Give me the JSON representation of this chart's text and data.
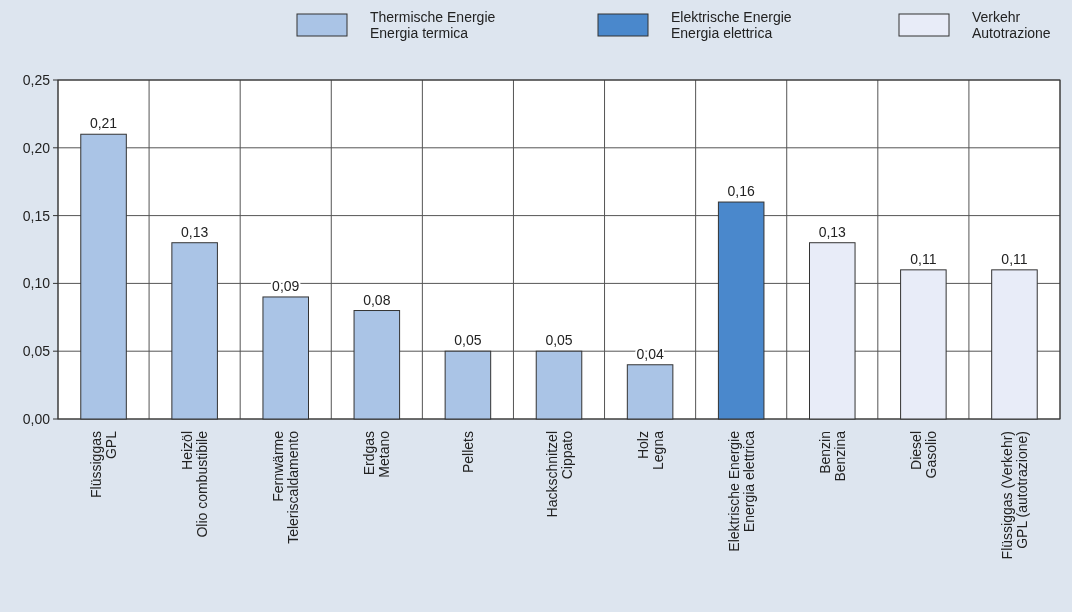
{
  "chart_data": {
    "type": "bar",
    "categories": [
      "Flüssiggas\nGPL",
      "Heizöl\nOlio combustibile",
      "Fernwärme\nTeleriscaldamento",
      "Erdgas\nMetano",
      "Pellets",
      "Hackschnitzel\nCippato",
      "Holz\nLegna",
      "Elektrische Energie\nEnergia elettrica",
      "Benzin\nBenzina",
      "Diesel\nGasolio",
      "Flüssiggas (Verkehr)\nGPL (autotrazione)"
    ],
    "series": [
      {
        "name": "Thermische Energie\nEnergia termica",
        "color": "#aac4e6",
        "values": [
          0.21,
          0.13,
          0.09,
          0.08,
          0.05,
          0.05,
          0.04,
          null,
          null,
          null,
          null
        ],
        "value_labels": [
          "0,21",
          "0,13",
          "0,09",
          "0,08",
          "0,05",
          "0,05",
          "0,04",
          null,
          null,
          null,
          null
        ]
      },
      {
        "name": "Elektrische Energie\nEnergia elettrica",
        "color": "#4a88cc",
        "values": [
          null,
          null,
          null,
          null,
          null,
          null,
          null,
          0.16,
          null,
          null,
          null
        ],
        "value_labels": [
          null,
          null,
          null,
          null,
          null,
          null,
          null,
          "0,16",
          null,
          null,
          null
        ]
      },
      {
        "name": "Verkehr\nAutotrazione",
        "color": "#e8ecf8",
        "values": [
          null,
          null,
          null,
          null,
          null,
          null,
          null,
          null,
          0.13,
          0.11,
          0.11
        ],
        "value_labels": [
          null,
          null,
          null,
          null,
          null,
          null,
          null,
          null,
          "0,13",
          "0,11",
          "0,11"
        ]
      }
    ],
    "ylim": [
      0,
      0.25
    ],
    "yticks": [
      {
        "value": 0,
        "label": "0,00"
      },
      {
        "value": 0.05,
        "label": "0,05"
      },
      {
        "value": 0.1,
        "label": "0,10"
      },
      {
        "value": 0.15,
        "label": "0,15"
      },
      {
        "value": 0.2,
        "label": "0,20"
      },
      {
        "value": 0.25,
        "label": "0,25"
      }
    ],
    "grid": true,
    "legend": "top right"
  }
}
